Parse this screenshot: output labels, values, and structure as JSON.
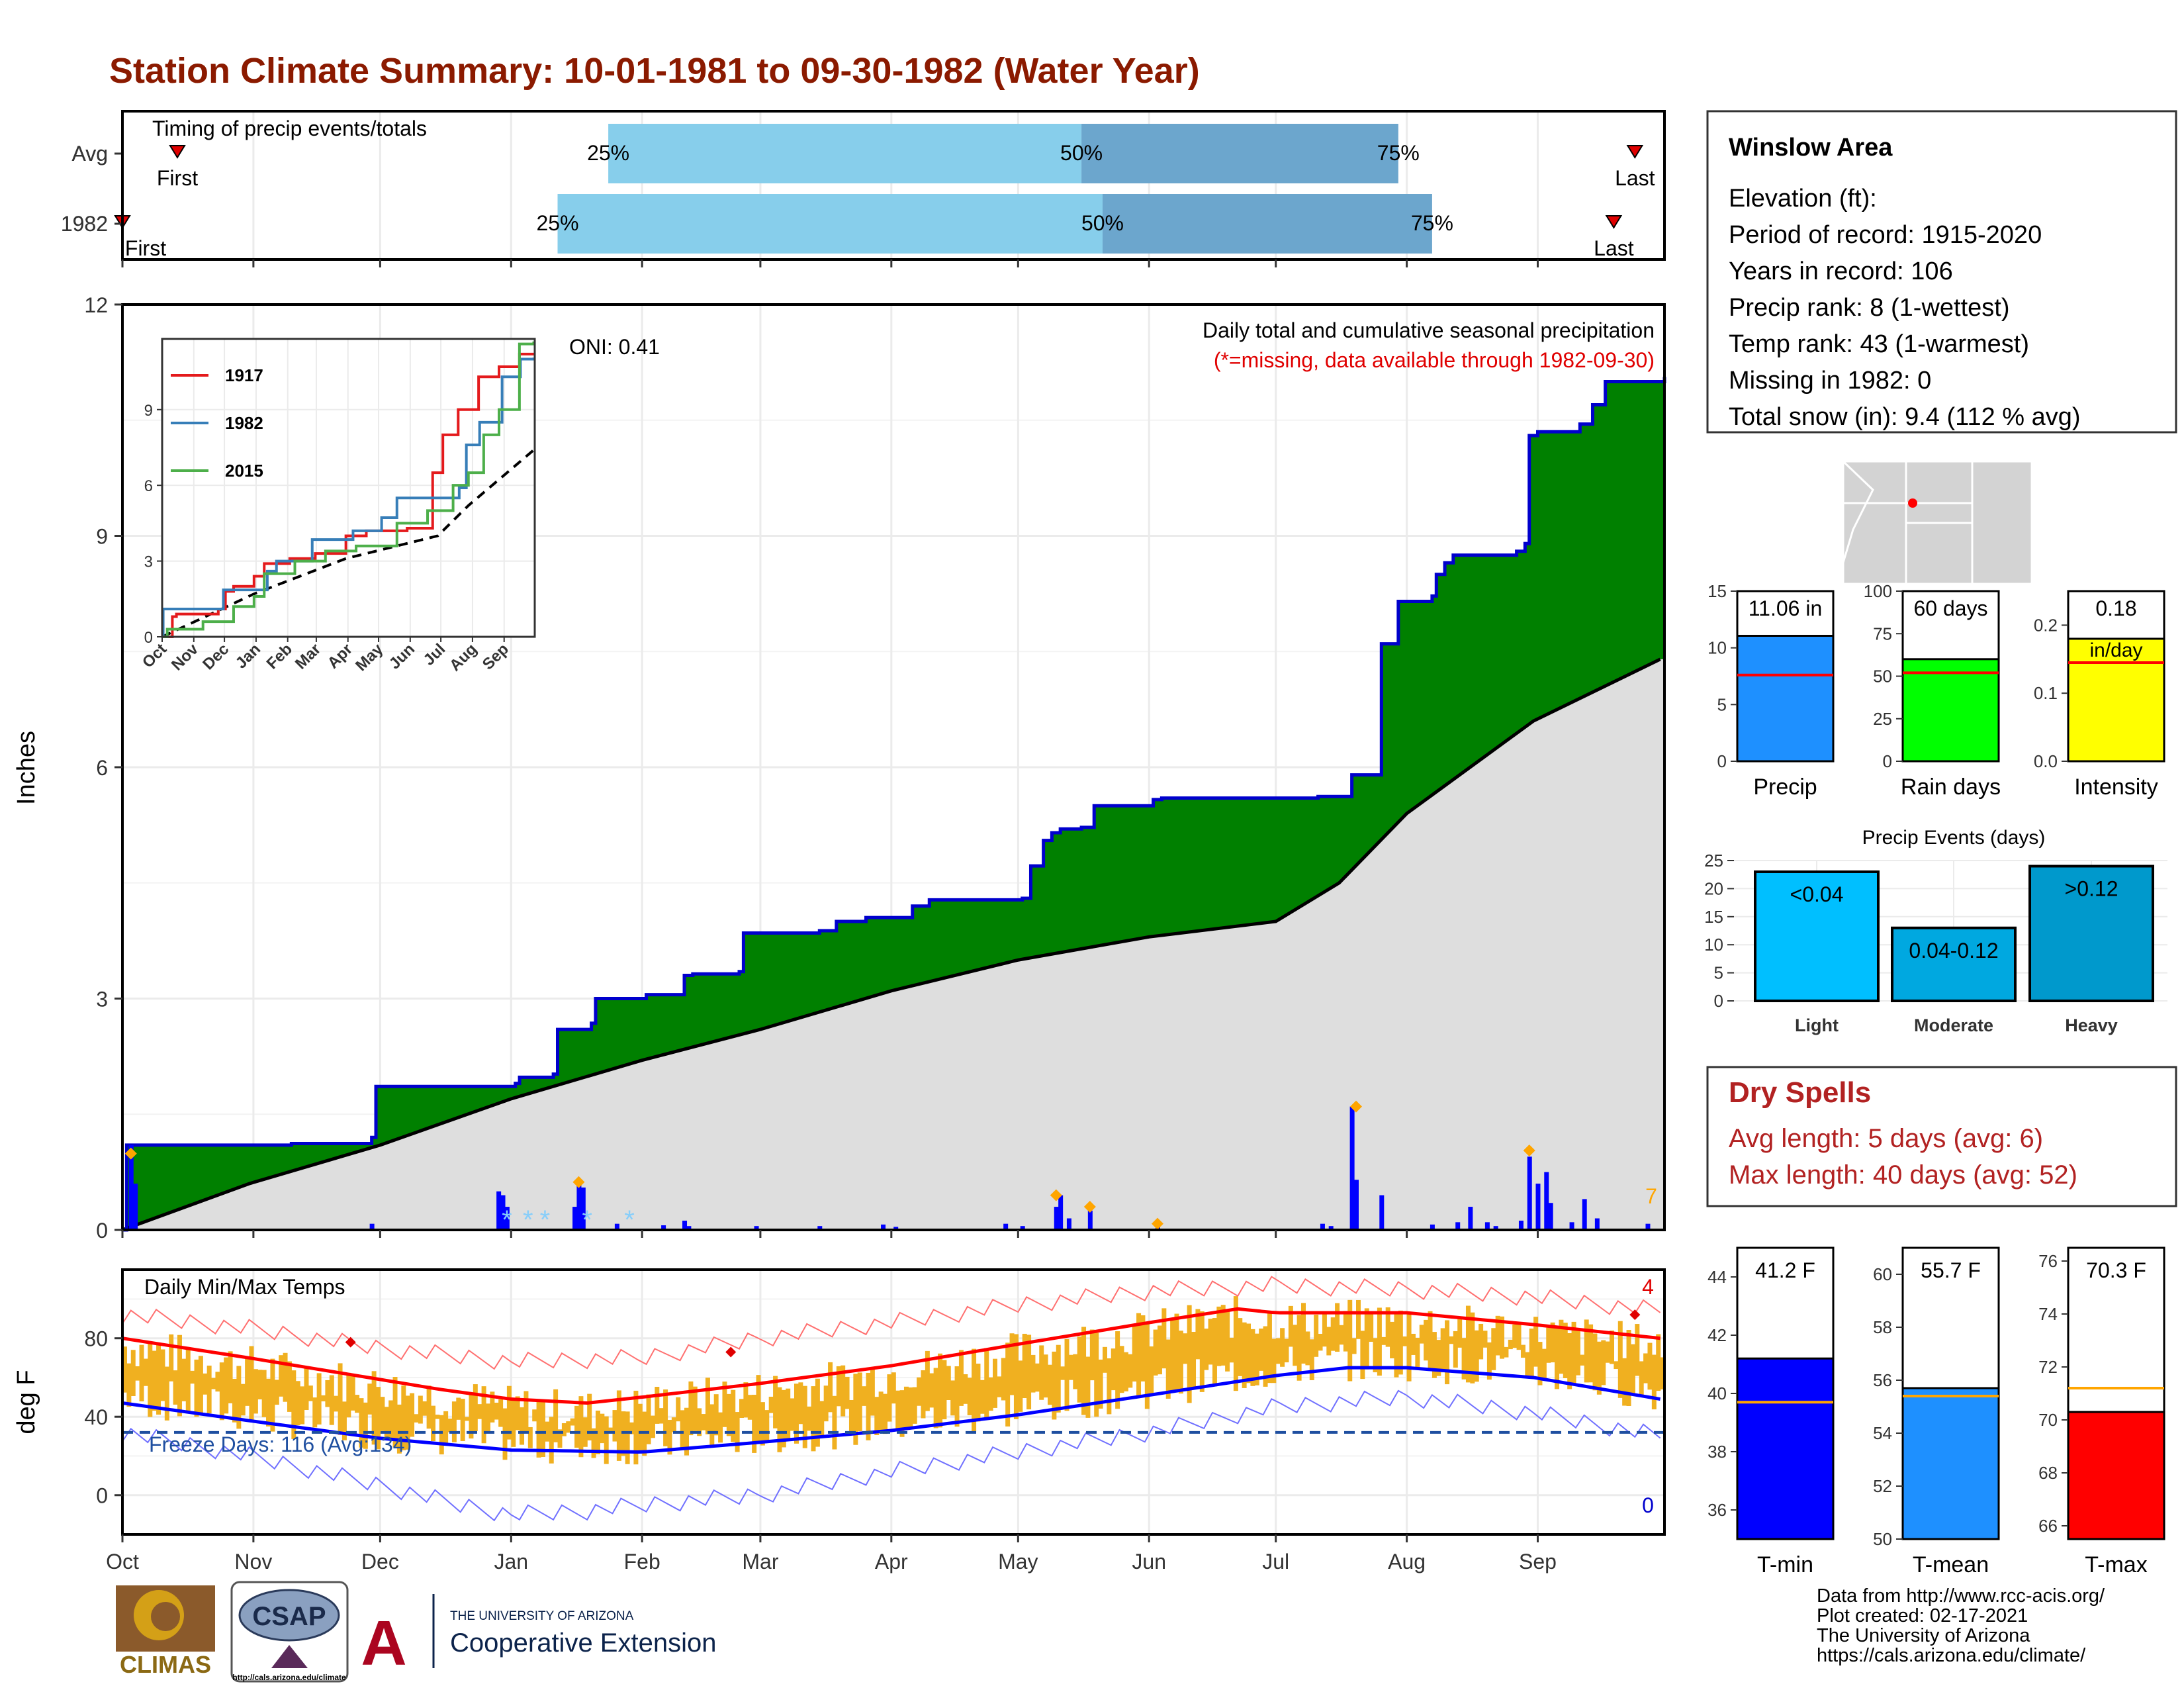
{
  "title": "Station Climate Summary: 10-01-1981 to 09-30-1982 (Water Year)",
  "months": [
    "Oct",
    "Nov",
    "Dec",
    "Jan",
    "Feb",
    "Mar",
    "Apr",
    "May",
    "Jun",
    "Jul",
    "Aug",
    "Sep"
  ],
  "timing": {
    "title": "Timing of precip events/totals",
    "rows": [
      {
        "label": "Avg",
        "first_day": 13,
        "last_day": 358,
        "p25_day": 115,
        "p50_day": 227,
        "p75_day": 302,
        "first_text": "First",
        "last_text": "Last"
      },
      {
        "label": "1982",
        "first_day": 0,
        "last_day": 353,
        "p25_day": 103,
        "p50_day": 232,
        "p75_day": 310,
        "first_text": "First",
        "last_text": "Last"
      }
    ],
    "pct_labels": [
      "25%",
      "50%",
      "75%"
    ]
  },
  "precip": {
    "ylabel": "Inches",
    "yticks": [
      0,
      3,
      6,
      9,
      12
    ],
    "ymax": 12,
    "annotation_title": "Daily total and cumulative seasonal precipitation",
    "annotation_missing": "(*=missing, data available through 1982-09-30)",
    "oni": "ONI: 0.41",
    "corner_value": "7",
    "cumulative_1982": [
      [
        0,
        0
      ],
      [
        1,
        1.1
      ],
      [
        40,
        1.12
      ],
      [
        59,
        1.2
      ],
      [
        60,
        1.86
      ],
      [
        93,
        1.9
      ],
      [
        94,
        1.98
      ],
      [
        102,
        2.02
      ],
      [
        103,
        2.6
      ],
      [
        111,
        2.68
      ],
      [
        112,
        3.0
      ],
      [
        124,
        3.05
      ],
      [
        133,
        3.3
      ],
      [
        135,
        3.32
      ],
      [
        146,
        3.35
      ],
      [
        147,
        3.85
      ],
      [
        165,
        3.88
      ],
      [
        169,
        4.0
      ],
      [
        176,
        4.05
      ],
      [
        187,
        4.2
      ],
      [
        191,
        4.28
      ],
      [
        213,
        4.3
      ],
      [
        215,
        4.72
      ],
      [
        218,
        5.05
      ],
      [
        220,
        5.15
      ],
      [
        222,
        5.2
      ],
      [
        227,
        5.22
      ],
      [
        230,
        5.5
      ],
      [
        244,
        5.58
      ],
      [
        246,
        5.6
      ],
      [
        283,
        5.62
      ],
      [
        291,
        5.9
      ],
      [
        298,
        7.6
      ],
      [
        302,
        8.15
      ],
      [
        310,
        8.22
      ],
      [
        311,
        8.5
      ],
      [
        313,
        8.65
      ],
      [
        315,
        8.75
      ],
      [
        330,
        8.8
      ],
      [
        332,
        8.9
      ],
      [
        333,
        10.3
      ],
      [
        335,
        10.35
      ],
      [
        345,
        10.45
      ],
      [
        348,
        10.7
      ],
      [
        351,
        11.0
      ],
      [
        370,
        11.06
      ]
    ],
    "normal_cumulative": [
      [
        0,
        0
      ],
      [
        30,
        0.6
      ],
      [
        61,
        1.1
      ],
      [
        92,
        1.7
      ],
      [
        123,
        2.2
      ],
      [
        151,
        2.6
      ],
      [
        182,
        3.1
      ],
      [
        212,
        3.5
      ],
      [
        243,
        3.8
      ],
      [
        273,
        4.0
      ],
      [
        288,
        4.5
      ],
      [
        304,
        5.4
      ],
      [
        334,
        6.6
      ],
      [
        364,
        7.4
      ]
    ],
    "daily_bars": [
      [
        2,
        1.1
      ],
      [
        3,
        0.6
      ],
      [
        59,
        0.08
      ],
      [
        89,
        0.5
      ],
      [
        90,
        0.45
      ],
      [
        91,
        0.3
      ],
      [
        107,
        0.3
      ],
      [
        108,
        0.62
      ],
      [
        109,
        0.55
      ],
      [
        117,
        0.08
      ],
      [
        128,
        0.06
      ],
      [
        133,
        0.12
      ],
      [
        134,
        0.05
      ],
      [
        150,
        0.05
      ],
      [
        165,
        0.05
      ],
      [
        180,
        0.07
      ],
      [
        183,
        0.04
      ],
      [
        209,
        0.08
      ],
      [
        213,
        0.05
      ],
      [
        221,
        0.3
      ],
      [
        222,
        0.45
      ],
      [
        224,
        0.15
      ],
      [
        229,
        0.25
      ],
      [
        245,
        0.05
      ],
      [
        284,
        0.08
      ],
      [
        286,
        0.05
      ],
      [
        291,
        1.6
      ],
      [
        292,
        0.65
      ],
      [
        298,
        0.45
      ],
      [
        310,
        0.07
      ],
      [
        316,
        0.1
      ],
      [
        319,
        0.3
      ],
      [
        323,
        0.1
      ],
      [
        325,
        0.05
      ],
      [
        331,
        0.12
      ],
      [
        333,
        0.95
      ],
      [
        335,
        0.6
      ],
      [
        337,
        0.75
      ],
      [
        338,
        0.35
      ],
      [
        343,
        0.1
      ],
      [
        346,
        0.4
      ],
      [
        349,
        0.15
      ],
      [
        361,
        0.08
      ]
    ],
    "diamonds": [
      [
        2,
        0.99
      ],
      [
        108,
        0.62
      ],
      [
        221,
        0.45
      ],
      [
        229,
        0.3
      ],
      [
        245,
        0.08
      ],
      [
        292,
        1.6
      ],
      [
        333,
        1.03
      ]
    ],
    "snow_stars": [
      91,
      96,
      100,
      110,
      120
    ],
    "inset": {
      "yticks": [
        0,
        3,
        6,
        9
      ],
      "months": [
        "Oct",
        "Nov",
        "Dec",
        "Jan",
        "Feb",
        "Mar",
        "Apr",
        "May",
        "Jun",
        "Jul",
        "Aug",
        "Sep"
      ],
      "series": [
        {
          "name": "1917",
          "color": "#e41a1c",
          "values": [
            [
              0,
              0
            ],
            [
              10,
              0.8
            ],
            [
              14,
              0.9
            ],
            [
              55,
              1.1
            ],
            [
              62,
              1.8
            ],
            [
              70,
              2.0
            ],
            [
              90,
              2.4
            ],
            [
              100,
              2.9
            ],
            [
              125,
              3.1
            ],
            [
              150,
              3.3
            ],
            [
              180,
              4.0
            ],
            [
              200,
              4.2
            ],
            [
              240,
              4.3
            ],
            [
              265,
              6.5
            ],
            [
              275,
              8.0
            ],
            [
              290,
              9.0
            ],
            [
              310,
              10.3
            ],
            [
              330,
              10.7
            ],
            [
              350,
              11.2
            ],
            [
              364,
              11.2
            ]
          ]
        },
        {
          "name": "1982",
          "color": "#377eb8",
          "values": [
            [
              0,
              0
            ],
            [
              1,
              1.1
            ],
            [
              60,
              1.86
            ],
            [
              103,
              2.6
            ],
            [
              112,
              3.0
            ],
            [
              147,
              3.85
            ],
            [
              187,
              4.2
            ],
            [
              215,
              4.72
            ],
            [
              230,
              5.5
            ],
            [
              291,
              5.9
            ],
            [
              298,
              7.6
            ],
            [
              311,
              8.5
            ],
            [
              333,
              10.3
            ],
            [
              351,
              11.0
            ],
            [
              364,
              11.06
            ]
          ]
        },
        {
          "name": "2015",
          "color": "#4daf4a",
          "values": [
            [
              0,
              0
            ],
            [
              5,
              0.3
            ],
            [
              40,
              0.6
            ],
            [
              70,
              1.2
            ],
            [
              90,
              1.6
            ],
            [
              100,
              2.5
            ],
            [
              130,
              3.0
            ],
            [
              160,
              3.4
            ],
            [
              190,
              3.6
            ],
            [
              230,
              4.5
            ],
            [
              260,
              5.0
            ],
            [
              285,
              6.0
            ],
            [
              300,
              6.5
            ],
            [
              315,
              8.0
            ],
            [
              330,
              9.0
            ],
            [
              350,
              11.6
            ],
            [
              364,
              11.7
            ]
          ]
        }
      ],
      "normal": [
        [
          0,
          0
        ],
        [
          90,
          1.7
        ],
        [
          180,
          3.1
        ],
        [
          270,
          4.0
        ],
        [
          300,
          5.2
        ],
        [
          364,
          7.4
        ]
      ]
    }
  },
  "temps": {
    "ylabel": "deg F",
    "title": "Daily Min/Max Temps",
    "yticks": [
      0,
      40,
      80
    ],
    "freeze_label": "Freeze Days: 116 (Avg:134)",
    "freeze_line": 32,
    "max_record_count": "4",
    "min_record_count": "0",
    "avg_max": [
      [
        0,
        80
      ],
      [
        30,
        70
      ],
      [
        61,
        59
      ],
      [
        75,
        54
      ],
      [
        92,
        49
      ],
      [
        110,
        47
      ],
      [
        123,
        50
      ],
      [
        151,
        57
      ],
      [
        182,
        66
      ],
      [
        212,
        77
      ],
      [
        243,
        88
      ],
      [
        264,
        95
      ],
      [
        273,
        93
      ],
      [
        304,
        93
      ],
      [
        334,
        87
      ],
      [
        364,
        80
      ]
    ],
    "avg_min": [
      [
        0,
        47
      ],
      [
        30,
        38
      ],
      [
        61,
        29
      ],
      [
        92,
        23
      ],
      [
        123,
        22
      ],
      [
        151,
        27
      ],
      [
        182,
        33
      ],
      [
        212,
        41
      ],
      [
        243,
        51
      ],
      [
        273,
        61
      ],
      [
        290,
        65
      ],
      [
        304,
        65
      ],
      [
        334,
        60
      ],
      [
        364,
        49
      ]
    ],
    "rec_max": [
      [
        0,
        92
      ],
      [
        30,
        85
      ],
      [
        61,
        75
      ],
      [
        92,
        68
      ],
      [
        123,
        70
      ],
      [
        151,
        80
      ],
      [
        182,
        88
      ],
      [
        212,
        97
      ],
      [
        243,
        104
      ],
      [
        273,
        107
      ],
      [
        304,
        105
      ],
      [
        334,
        101
      ],
      [
        364,
        94
      ]
    ],
    "rec_min": [
      [
        0,
        32
      ],
      [
        30,
        20
      ],
      [
        61,
        5
      ],
      [
        80,
        -5
      ],
      [
        92,
        -10
      ],
      [
        110,
        -8
      ],
      [
        123,
        -5
      ],
      [
        151,
        0
      ],
      [
        182,
        12
      ],
      [
        212,
        22
      ],
      [
        243,
        32
      ],
      [
        273,
        45
      ],
      [
        304,
        50
      ],
      [
        334,
        42
      ],
      [
        364,
        30
      ]
    ],
    "record_diamonds": [
      [
        54,
        78
      ],
      [
        144,
        73
      ],
      [
        358,
        92
      ]
    ]
  },
  "station": {
    "name": "Winslow Area",
    "lines": [
      "Elevation (ft):",
      "Period of record: 1915-2020",
      "Years in record: 106",
      "Precip rank: 8 (1-wettest)",
      "Temp rank: 43 (1-warmest)",
      "Missing in 1982: 0",
      "Total snow (in): 9.4 (112 % avg)"
    ]
  },
  "mini_bars": [
    {
      "label": "Precip",
      "value_text": "11.06 in",
      "value": 11.06,
      "avg": 7.6,
      "ymax": 15,
      "yticks": [
        0,
        5,
        10,
        15
      ],
      "color": "#1e90ff"
    },
    {
      "label": "Rain days",
      "value_text": "60 days",
      "value": 60,
      "avg": 52,
      "ymax": 100,
      "yticks": [
        0,
        25,
        50,
        75,
        100
      ],
      "color": "#00ff00"
    },
    {
      "label": "Intensity",
      "value_text": "0.18",
      "value_sub": "in/day",
      "value": 0.18,
      "avg": 0.145,
      "ymax": 0.25,
      "yticks": [
        0.0,
        0.1,
        0.2
      ],
      "color": "#ffff00"
    }
  ],
  "events": {
    "title": "Precip Events (days)",
    "yticks": [
      0,
      5,
      10,
      15,
      20,
      25
    ],
    "ymax": 25,
    "categories": [
      "Light",
      "Moderate",
      "Heavy"
    ],
    "bar_labels": [
      "<0.04",
      "0.04-0.12",
      ">0.12"
    ],
    "values": [
      23,
      13,
      24
    ],
    "colors": [
      "#00bfff",
      "#00a8e0",
      "#0099cc"
    ]
  },
  "dry": {
    "title": "Dry Spells",
    "lines": [
      "Avg length: 5 days (avg: 6)",
      "Max length: 40 days (avg: 52)"
    ]
  },
  "temp_bars": [
    {
      "label": "T-min",
      "value_text": "41.2 F",
      "value": 41.2,
      "avg": 39.7,
      "ymin": 35,
      "ymax": 45,
      "yticks": [
        36,
        38,
        40,
        42,
        44
      ],
      "color": "#0000ff"
    },
    {
      "label": "T-mean",
      "value_text": "55.7 F",
      "value": 55.7,
      "avg": 55.4,
      "ymin": 50,
      "ymax": 61,
      "yticks": [
        50,
        52,
        54,
        56,
        58,
        60
      ],
      "color": "#1e90ff"
    },
    {
      "label": "T-max",
      "value_text": "70.3 F",
      "value": 70.3,
      "avg": 71.2,
      "ymin": 65.5,
      "ymax": 76.5,
      "yticks": [
        66,
        68,
        70,
        72,
        74,
        76
      ],
      "color": "#ff0000"
    }
  ],
  "credits": [
    "Data from http://www.rcc-acis.org/",
    "Plot created: 02-17-2021",
    "The University of Arizona",
    "https://cals.arizona.edu/climate/"
  ],
  "logos": {
    "climas": "CLIMAS",
    "csap": "CSAP",
    "csap_url": "http://cals.arizona.edu/climate",
    "ua_top": "THE UNIVERSITY OF ARIZONA",
    "ua_bottom": "Cooperative Extension",
    "ua_mark": "A"
  },
  "colors": {
    "title": "#8b1a00",
    "green": "#008000",
    "blue": "#0000cd",
    "gray": "#dedede",
    "orange": "#f0b020",
    "red_text": "#e00000",
    "dry_text": "#b22222",
    "p_light": "#87ceeb",
    "p_dark": "#6ca6cd"
  }
}
